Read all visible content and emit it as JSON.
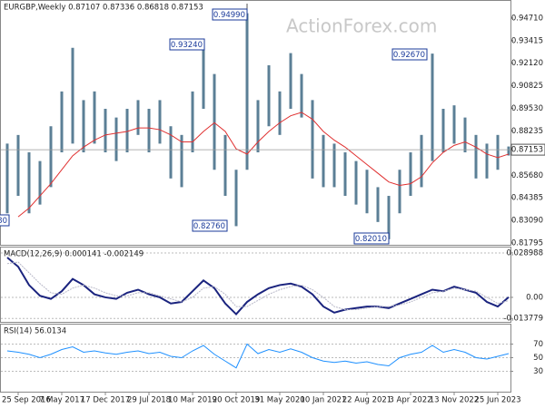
{
  "chart_data": [
    {
      "type": "range",
      "title": "EURGBP,Weekly  0.87107 0.87336 0.86818 0.87153",
      "watermark": "ActionForex.com",
      "categories": [
        null,
        "25 Sep 2016",
        null,
        null,
        null,
        "7 May 2017",
        null,
        null,
        null,
        "17 Dec 2017",
        null,
        null,
        null,
        "29 Jul 2018",
        null,
        null,
        null,
        "10 Mar 2019",
        null,
        null,
        null,
        "20 Oct 2019",
        null,
        null,
        null,
        "31 May 2020",
        null,
        null,
        null,
        "10 Jan 2021",
        null,
        null,
        null,
        "22 Aug 2021",
        null,
        null,
        null,
        "3 Apr 2022",
        null,
        null,
        null,
        "13 Nov 2022",
        null,
        null,
        null,
        "25 Jun 2023",
        null
      ],
      "high": [
        0.875,
        0.88,
        0.87,
        0.865,
        0.885,
        0.905,
        0.93,
        0.9,
        0.905,
        0.895,
        0.89,
        0.895,
        0.9,
        0.895,
        0.9,
        0.885,
        0.88,
        0.905,
        0.9324,
        0.915,
        0.88,
        0.86,
        0.9499,
        0.9,
        0.92,
        0.905,
        0.927,
        0.915,
        0.9,
        0.88,
        0.875,
        0.87,
        0.865,
        0.86,
        0.85,
        0.845,
        0.86,
        0.87,
        0.88,
        0.9267,
        0.895,
        0.897,
        0.89,
        0.88,
        0.875,
        0.88,
        0.87336
      ],
      "low": [
        0.835,
        0.845,
        0.835,
        0.84,
        0.85,
        0.87,
        0.875,
        0.87,
        0.875,
        0.87,
        0.865,
        0.87,
        0.88,
        0.87,
        0.875,
        0.855,
        0.85,
        0.87,
        0.895,
        0.86,
        0.845,
        0.8276,
        0.86,
        0.87,
        0.885,
        0.88,
        0.895,
        0.89,
        0.855,
        0.85,
        0.85,
        0.845,
        0.84,
        0.835,
        0.83,
        0.8201,
        0.835,
        0.845,
        0.85,
        0.865,
        0.87,
        0.875,
        0.87,
        0.855,
        0.855,
        0.86,
        0.86818
      ],
      "bar_color": "#5b7f96",
      "ma_values": [
        null,
        0.833,
        0.838,
        0.845,
        0.852,
        0.86,
        0.868,
        0.873,
        0.877,
        0.88,
        0.881,
        0.882,
        0.884,
        0.884,
        0.883,
        0.88,
        0.876,
        0.876,
        0.882,
        0.887,
        0.882,
        0.872,
        0.869,
        0.876,
        0.882,
        0.887,
        0.891,
        0.893,
        0.889,
        0.882,
        0.877,
        0.873,
        0.868,
        0.863,
        0.858,
        0.853,
        0.851,
        0.852,
        0.856,
        0.864,
        0.87,
        0.874,
        0.876,
        0.873,
        0.869,
        0.867,
        0.869
      ],
      "ma_color": "#e03030",
      "ylim": [
        0.8169,
        0.9575
      ],
      "yticks": [
        {
          "value": 0.9471,
          "label": "0.94710"
        },
        {
          "value": 0.93415,
          "label": "0.93415"
        },
        {
          "value": 0.9212,
          "label": "0.92120"
        },
        {
          "value": 0.90825,
          "label": "0.90825"
        },
        {
          "value": 0.8953,
          "label": "0.89530"
        },
        {
          "value": 0.88235,
          "label": "0.88235"
        },
        {
          "value": 0.8568,
          "label": "0.85680"
        },
        {
          "value": 0.84385,
          "label": "0.84385"
        },
        {
          "value": 0.8309,
          "label": "0.83090"
        },
        {
          "value": 0.81795,
          "label": "0.81795"
        }
      ],
      "last_price": {
        "value": 0.87153,
        "label": "0.87153"
      },
      "annotations": [
        "0.94990",
        "0.93240",
        "0.92670",
        "0.82760",
        "0.82010",
        "80"
      ]
    },
    {
      "type": "line",
      "title": "MACD(12,26,9) 0.000141 -0.002149",
      "series": [
        {
          "color": "#1a237e",
          "values": [
            0.026,
            0.02,
            0.008,
            0.001,
            -0.001,
            0.004,
            0.012,
            0.008,
            0.002,
            0.0,
            -0.001,
            0.003,
            0.005,
            0.002,
            0.0,
            -0.004,
            -0.003,
            0.004,
            0.011,
            0.006,
            -0.004,
            -0.011,
            -0.003,
            0.002,
            0.006,
            0.008,
            0.009,
            0.007,
            0.002,
            -0.006,
            -0.01,
            -0.008,
            -0.007,
            -0.006,
            -0.006,
            -0.007,
            -0.004,
            -0.001,
            0.002,
            0.005,
            0.004,
            0.007,
            0.005,
            0.003,
            -0.003,
            -0.006,
            0.000141
          ]
        },
        {
          "color": "#b8b8c8",
          "values": [
            0.022,
            0.023,
            0.016,
            0.009,
            0.003,
            0.002,
            0.006,
            0.008,
            0.006,
            0.003,
            0.001,
            0.001,
            0.003,
            0.003,
            0.001,
            -0.001,
            -0.003,
            0.0,
            0.006,
            0.007,
            0.002,
            -0.006,
            -0.006,
            -0.002,
            0.002,
            0.005,
            0.007,
            0.008,
            0.005,
            0.0,
            -0.006,
            -0.008,
            -0.008,
            -0.007,
            -0.006,
            -0.006,
            -0.005,
            -0.003,
            0.0,
            0.003,
            0.004,
            0.006,
            0.005,
            0.004,
            0.0,
            -0.004,
            -0.002149
          ]
        }
      ],
      "ylim": [
        -0.016,
        0.0331
      ],
      "yticks": [
        0.028988,
        {
          "value": 0,
          "label": "0.00"
        },
        -0.013779
      ],
      "grid": true
    },
    {
      "type": "line",
      "title": "RSI(14) 56.0134",
      "series": [
        {
          "color": "#1e90ff",
          "values": [
            60,
            58,
            55,
            50,
            55,
            62,
            66,
            58,
            60,
            57,
            55,
            58,
            60,
            56,
            58,
            52,
            50,
            60,
            68,
            55,
            45,
            35,
            70,
            56,
            62,
            58,
            63,
            58,
            50,
            45,
            43,
            45,
            42,
            44,
            40,
            38,
            50,
            55,
            58,
            68,
            58,
            62,
            58,
            50,
            48,
            52,
            56.0134
          ]
        }
      ],
      "ylim": [
        0,
        100
      ],
      "yticks": [
        70,
        50,
        30
      ],
      "grid": true
    }
  ]
}
